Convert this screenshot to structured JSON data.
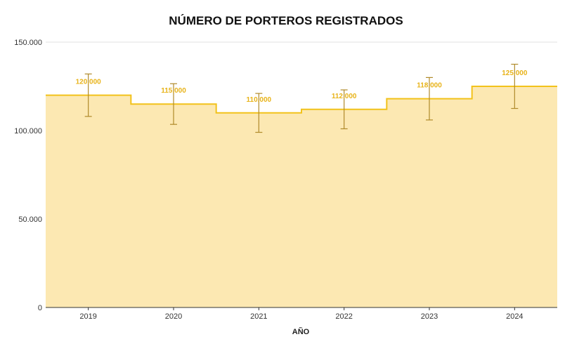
{
  "chart_data": {
    "type": "area",
    "title": "NÚMERO DE PORTEROS REGISTRADOS",
    "xlabel": "AÑO",
    "ylabel": "",
    "categories": [
      "2019",
      "2020",
      "2021",
      "2022",
      "2023",
      "2024"
    ],
    "values": [
      120000,
      115000,
      110000,
      112000,
      118000,
      125000
    ],
    "data_labels": [
      "120.000",
      "115.000",
      "110.000",
      "112.000",
      "118.000",
      "125.000"
    ],
    "error_low": [
      108000,
      103500,
      99000,
      101000,
      106000,
      112500
    ],
    "error_high": [
      132000,
      126500,
      121000,
      123000,
      130000,
      137500
    ],
    "ylim": [
      0,
      150000
    ],
    "yticks": [
      0,
      50000,
      100000,
      150000
    ],
    "ytick_labels": [
      "0",
      "50.000",
      "100.000",
      "150.000"
    ],
    "step": true,
    "grid": true,
    "legend": "none",
    "colors": {
      "line": "#f2c21b",
      "fill": "#fce8b2",
      "label": "#e8b319",
      "error_bar": "#b08a2a",
      "grid": "#e0e0e0",
      "axis": "#333333"
    }
  }
}
